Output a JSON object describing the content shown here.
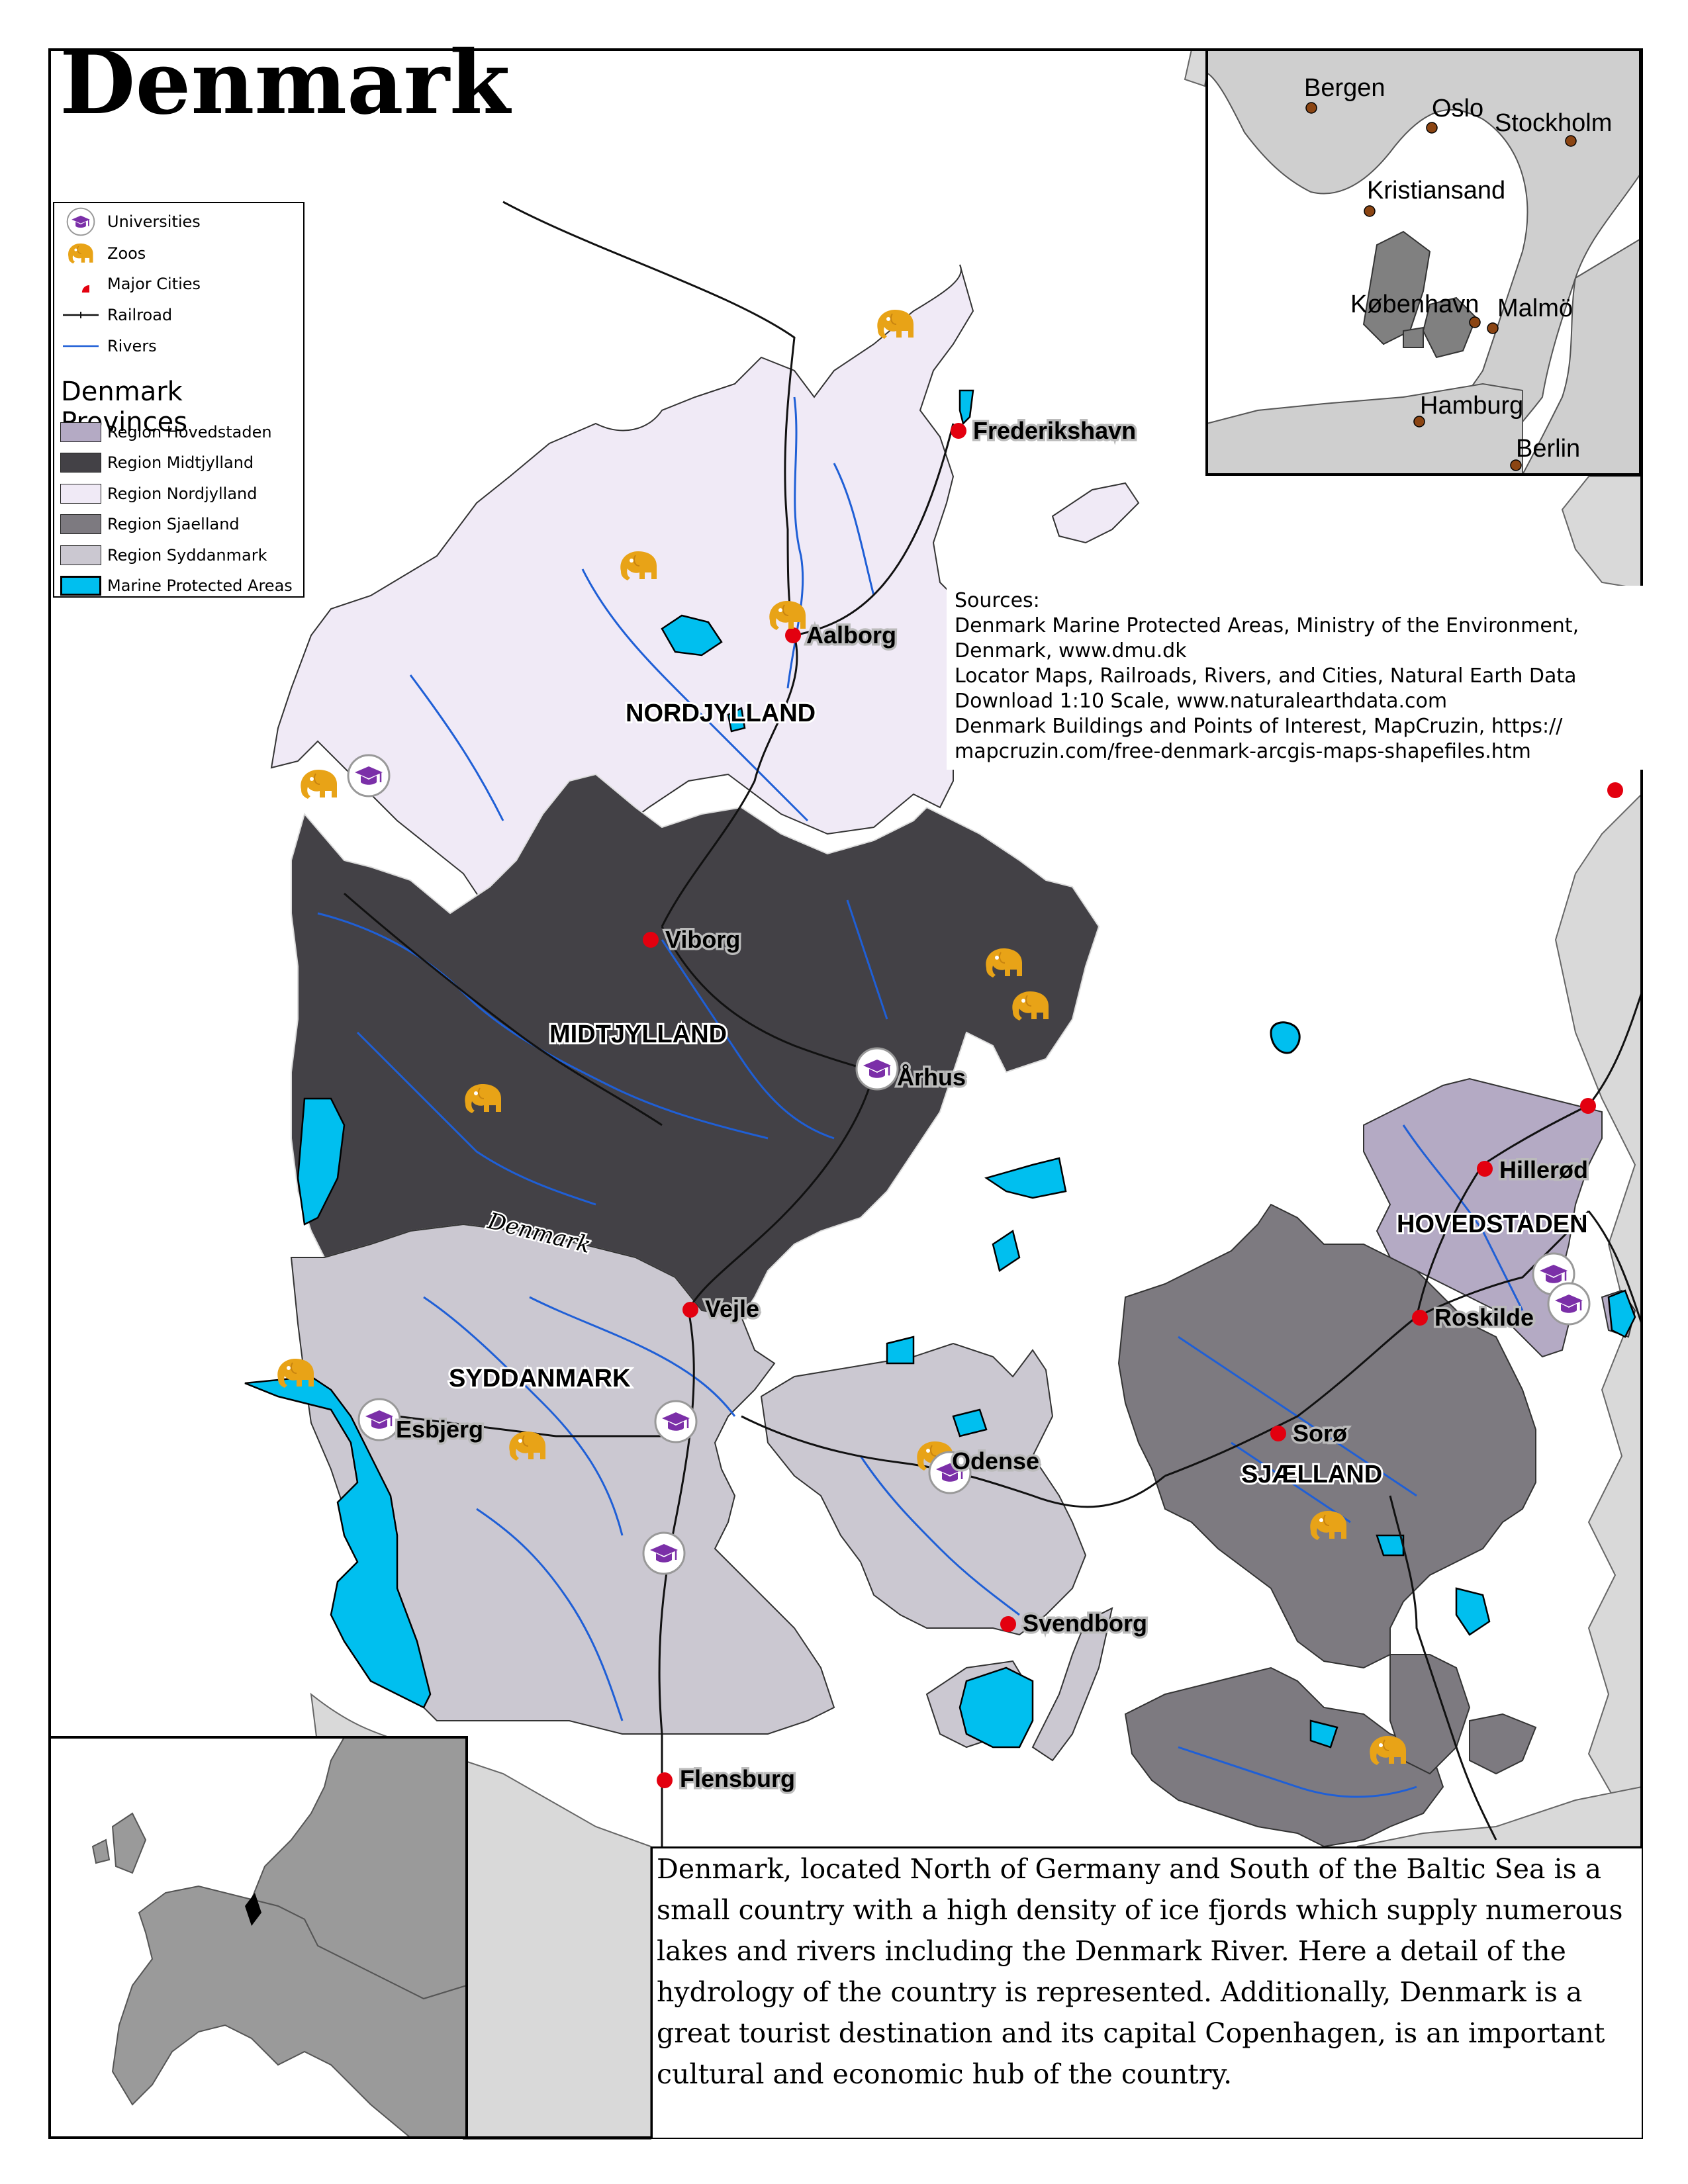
{
  "title": "Denmark",
  "legend": {
    "symbols": [
      {
        "label": "Universities",
        "icon": "university-icon"
      },
      {
        "label": "Zoos",
        "icon": "elephant-icon"
      },
      {
        "label": "Major Cities",
        "icon": "city-dot-icon"
      },
      {
        "label": "Railroad",
        "icon": "railroad-line-icon"
      },
      {
        "label": "Rivers",
        "icon": "river-line-icon"
      }
    ],
    "provinces_heading": "Denmark Provinces",
    "provinces": [
      {
        "label": "Region Hovedstaden",
        "color": "#b4aac4"
      },
      {
        "label": "Region Midtjylland",
        "color": "#434146"
      },
      {
        "label": "Region Nordjylland",
        "color": "#f0eaf6"
      },
      {
        "label": "Region Sjaelland",
        "color": "#7d7a80"
      },
      {
        "label": "Region Syddanmark",
        "color": "#cbc8d1"
      },
      {
        "label": "Marine Protected Areas",
        "color": "#00bfef"
      }
    ]
  },
  "colors": {
    "nordjylland": "#f0eaf6",
    "midtjylland": "#434146",
    "syddanmark": "#cbc8d1",
    "sjaelland": "#7d7a80",
    "hovedstaden": "#b4aac4",
    "marine": "#00bfef",
    "neighbor": "#d9d9d9",
    "river": "#1f5fd6",
    "city": "#e3000f",
    "zoo": "#e8a317",
    "university": "#7b2fa8"
  },
  "regions": [
    "NORDJYLLAND",
    "MIDTJYLLAND",
    "SYDDANMARK",
    "SJÆLLAND",
    "HOVEDSTADEN"
  ],
  "cities": [
    "Frederikshavn",
    "Aalborg",
    "Viborg",
    "Århus",
    "Vejle",
    "Esbjerg",
    "Odense",
    "Svendborg",
    "Flensburg",
    "Hillerød",
    "Roskilde",
    "Sorø"
  ],
  "river_label": "Denmark",
  "inset_cities": [
    "Bergen",
    "Oslo",
    "Stockholm",
    "Kristiansand",
    "København",
    "Malmö",
    "Hamburg",
    "Berlin"
  ],
  "sources": [
    "Sources:",
    "Denmark Marine Protected Areas, Ministry of the Environment,",
    "Denmark, www.dmu.dk",
    "Locator Maps, Railroads, Rivers, and Cities, Natural Earth Data",
    "Download 1:10 Scale, www.naturalearthdata.com",
    "Denmark Buildings and Points of Interest, MapCruzin, https://",
    "mapcruzin.com/free-denmark-arcgis-maps-shapefiles.htm"
  ],
  "description": "Denmark, located North of Germany and South of the Baltic Sea is a small country with a high density of ice fjords which supply numerous lakes and rivers including the Denmark River. Here a detail of the hydrology of the country is represented. Additionally, Denmark is a great tourist destination and its capital Copenhagen, is an important cultural and economic hub of the country."
}
